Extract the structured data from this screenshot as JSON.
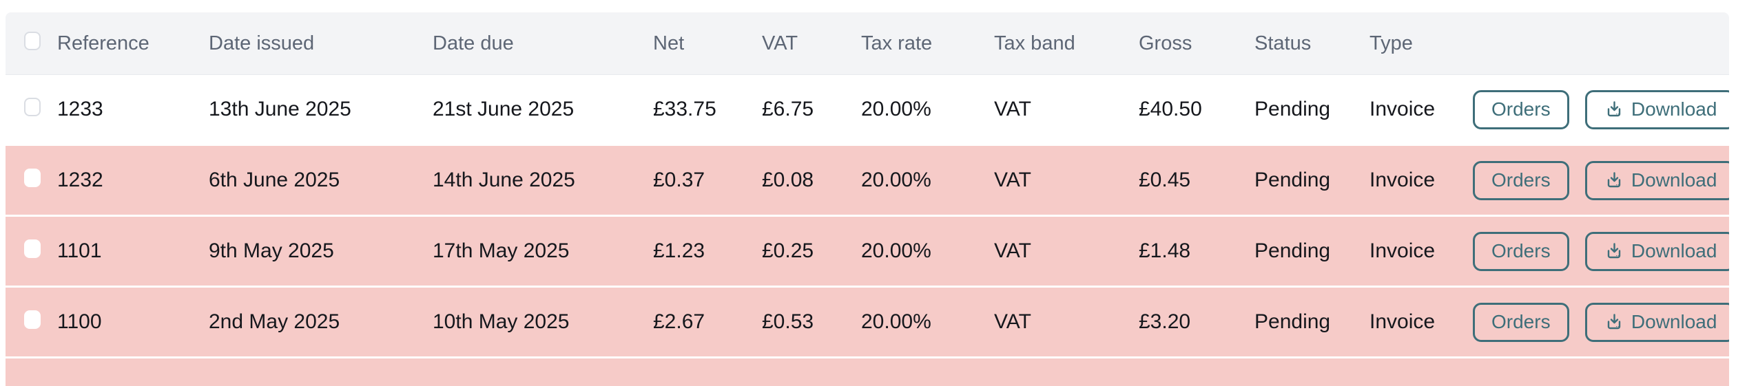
{
  "colors": {
    "accent_teal": "#3E6E79",
    "highlight_row_bg": "#F6CBC8",
    "header_bg": "#F3F4F6",
    "header_text": "#5D6675",
    "body_text": "#15171C"
  },
  "table": {
    "select_all_checked": false,
    "columns": [
      {
        "key": "reference",
        "label": "Reference"
      },
      {
        "key": "date_issued",
        "label": "Date issued"
      },
      {
        "key": "date_due",
        "label": "Date due"
      },
      {
        "key": "net",
        "label": "Net"
      },
      {
        "key": "vat",
        "label": "VAT"
      },
      {
        "key": "tax_rate",
        "label": "Tax rate"
      },
      {
        "key": "tax_band",
        "label": "Tax band"
      },
      {
        "key": "gross",
        "label": "Gross"
      },
      {
        "key": "status",
        "label": "Status"
      },
      {
        "key": "type",
        "label": "Type"
      }
    ],
    "rows": [
      {
        "reference": "1233",
        "date_issued": "13th June 2025",
        "date_due": "21st June 2025",
        "net": "£33.75",
        "vat": "£6.75",
        "tax_rate": "20.00%",
        "tax_band": "VAT",
        "gross": "£40.50",
        "status": "Pending",
        "type": "Invoice",
        "selected": false,
        "highlighted": false
      },
      {
        "reference": "1232",
        "date_issued": "6th June 2025",
        "date_due": "14th June 2025",
        "net": "£0.37",
        "vat": "£0.08",
        "tax_rate": "20.00%",
        "tax_band": "VAT",
        "gross": "£0.45",
        "status": "Pending",
        "type": "Invoice",
        "selected": false,
        "highlighted": true
      },
      {
        "reference": "1101",
        "date_issued": "9th May 2025",
        "date_due": "17th May 2025",
        "net": "£1.23",
        "vat": "£0.25",
        "tax_rate": "20.00%",
        "tax_band": "VAT",
        "gross": "£1.48",
        "status": "Pending",
        "type": "Invoice",
        "selected": false,
        "highlighted": true
      },
      {
        "reference": "1100",
        "date_issued": "2nd May 2025",
        "date_due": "10th May 2025",
        "net": "£2.67",
        "vat": "£0.53",
        "tax_rate": "20.00%",
        "tax_band": "VAT",
        "gross": "£3.20",
        "status": "Pending",
        "type": "Invoice",
        "selected": false,
        "highlighted": true
      }
    ],
    "row_actions": {
      "orders_label": "Orders",
      "download_label": "Download",
      "download_icon": "download-icon"
    }
  }
}
